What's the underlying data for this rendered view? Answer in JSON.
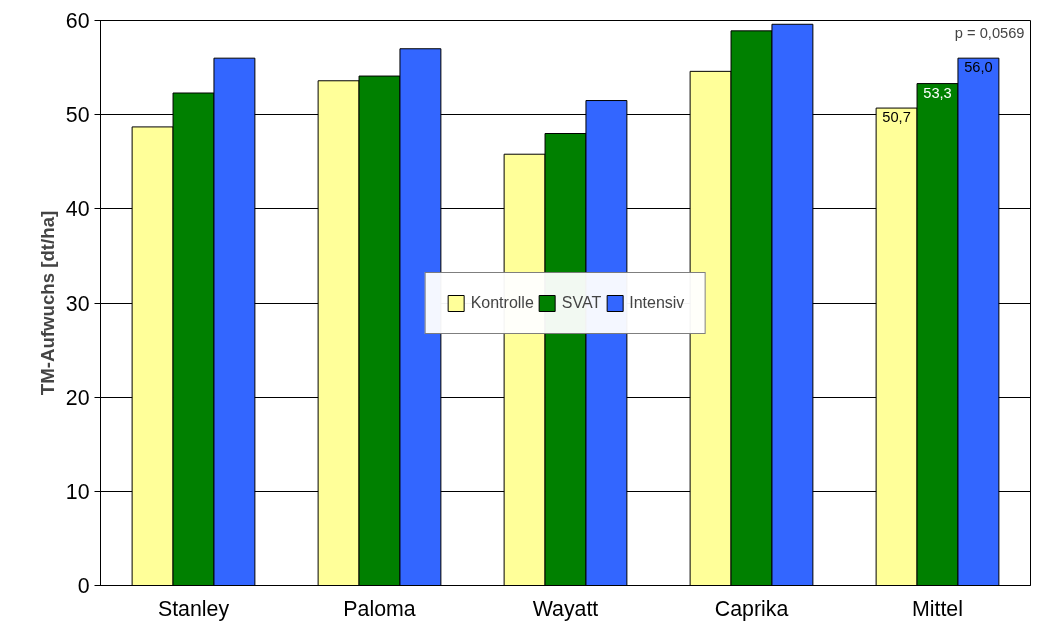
{
  "chart_data": {
    "type": "bar",
    "ylabel": "TM-Aufwuchs [dt/ha]",
    "categories": [
      "Stanley",
      "Paloma",
      "Wayatt",
      "Caprika",
      "Mittel"
    ],
    "series": [
      {
        "name": "Kontrolle",
        "color": "#ffff99",
        "values": [
          48.7,
          53.6,
          45.8,
          54.6,
          50.7
        ],
        "value_labels": [
          null,
          null,
          null,
          null,
          "50,7"
        ]
      },
      {
        "name": "SVAT",
        "color": "#008000",
        "values": [
          52.3,
          54.1,
          48.0,
          58.9,
          53.3
        ],
        "value_labels": [
          null,
          null,
          null,
          null,
          "53,3"
        ]
      },
      {
        "name": "Intensiv",
        "color": "#3366ff",
        "values": [
          56.0,
          57.0,
          51.5,
          59.6,
          56.0
        ],
        "value_labels": [
          null,
          null,
          null,
          null,
          "56,0"
        ]
      }
    ],
    "ylim": [
      0,
      60
    ],
    "yticks": [
      0,
      10,
      20,
      30,
      40,
      50,
      60
    ],
    "grid": "y",
    "legend": "center",
    "annotations": [
      "p = 0,0569"
    ]
  }
}
